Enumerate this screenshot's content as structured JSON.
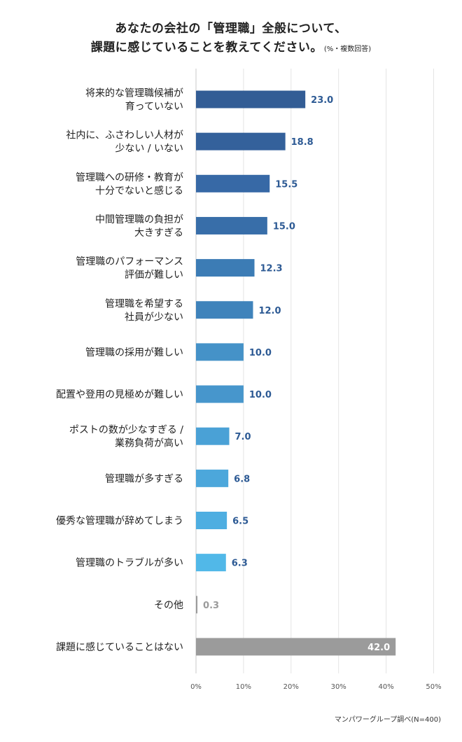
{
  "title_line1": "あなたの会社の「管理職」全般について、",
  "title_line2": "課題に感じていることを教えてください。",
  "title_note": "(%・複数回答)",
  "source": "マンパワーグループ調べ(N=400)",
  "chart_data": {
    "type": "bar",
    "orientation": "horizontal",
    "categories": [
      [
        "将来的な管理職候補が",
        "育っていない"
      ],
      [
        "社内に、ふさわしい人材が",
        "少ない / いない"
      ],
      [
        "管理職への研修・教育が",
        "十分でないと感じる"
      ],
      [
        "中間管理職の負担が",
        "大きすぎる"
      ],
      [
        "管理職のパフォーマンス",
        "評価が難しい"
      ],
      [
        "管理職を希望する",
        "社員が少ない"
      ],
      [
        "管理職の採用が難しい"
      ],
      [
        "配置や登用の見極めが難しい"
      ],
      [
        "ポストの数が少なすぎる /",
        "業務負荷が高い"
      ],
      [
        "管理職が多すぎる"
      ],
      [
        "優秀な管理職が辞めてしまう"
      ],
      [
        "管理職のトラブルが多い"
      ],
      [
        "その他"
      ],
      [
        "課題に感じていることはない"
      ]
    ],
    "values": [
      23.0,
      18.8,
      15.5,
      15.0,
      12.3,
      12.0,
      10.0,
      10.0,
      7.0,
      6.8,
      6.5,
      6.3,
      0.3,
      42.0
    ],
    "value_labels": [
      "23.0",
      "18.8",
      "15.5",
      "15.0",
      "12.3",
      "12.0",
      "10.0",
      "10.0",
      "7.0",
      "6.8",
      "6.5",
      "6.3",
      "0.3",
      "42.0"
    ],
    "bar_colors": [
      "#335d95",
      "#34619b",
      "#3769a6",
      "#386ea9",
      "#3c7cb5",
      "#3f83bb",
      "#4592c8",
      "#4796cc",
      "#4aa1d6",
      "#4ca7db",
      "#4eaee1",
      "#51b8e8",
      "#9b9b9b",
      "#9b9b9b"
    ],
    "label_colors": [
      "#2d5a94",
      "#2d5a94",
      "#2d5a94",
      "#2d5a94",
      "#2d5a94",
      "#2d5a94",
      "#2d5a94",
      "#2d5a94",
      "#2d5a94",
      "#2d5a94",
      "#2d5a94",
      "#2d5a94",
      "#9b9b9b",
      "#ffffff"
    ],
    "x_ticks": [
      0,
      10,
      20,
      30,
      40,
      50
    ],
    "x_tick_labels": [
      "0%",
      "10%",
      "20%",
      "30%",
      "40%",
      "50%"
    ],
    "xlim": [
      0,
      50
    ],
    "grid": true
  }
}
